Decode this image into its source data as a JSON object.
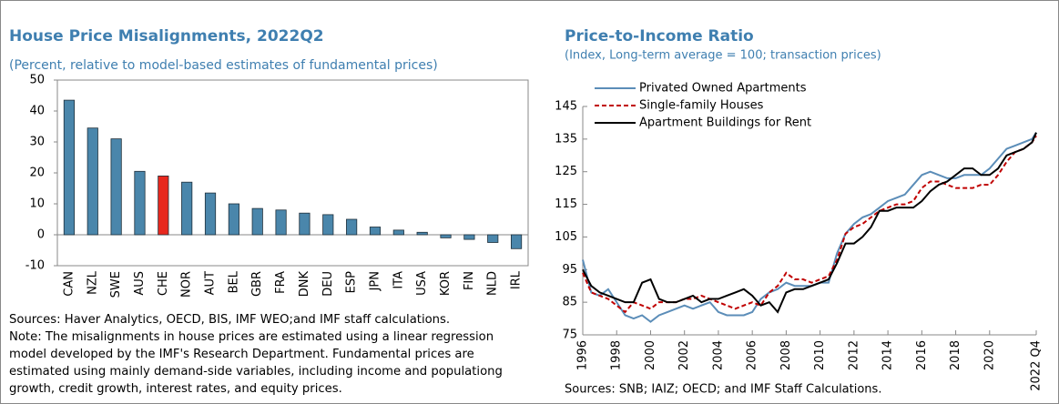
{
  "chart_data": [
    {
      "type": "bar",
      "title": "House Price Misalignments, 2022Q2",
      "subtitle": "(Percent, relative to model-based estimates of fundamental prices)",
      "categories": [
        "CAN",
        "NZL",
        "SWE",
        "AUS",
        "CHE",
        "NOR",
        "AUT",
        "BEL",
        "GBR",
        "FRA",
        "DNK",
        "DEU",
        "ESP",
        "JPN",
        "ITA",
        "USA",
        "KOR",
        "FIN",
        "NLD",
        "IRL"
      ],
      "values": [
        43.5,
        34.5,
        31,
        20.5,
        19,
        17,
        13.5,
        10,
        8.5,
        8,
        7,
        6.5,
        5,
        2.5,
        1.5,
        0.8,
        -1,
        -1.5,
        -2.5,
        -4.5
      ],
      "colors": [
        "#4a86ab",
        "#4a86ab",
        "#4a86ab",
        "#4a86ab",
        "#e8281e",
        "#4a86ab",
        "#4a86ab",
        "#4a86ab",
        "#4a86ab",
        "#4a86ab",
        "#4a86ab",
        "#4a86ab",
        "#4a86ab",
        "#4a86ab",
        "#4a86ab",
        "#4a86ab",
        "#4a86ab",
        "#4a86ab",
        "#4a86ab",
        "#4a86ab"
      ],
      "ylim": [
        -10,
        50
      ],
      "yticks": [
        -10,
        0,
        10,
        20,
        30,
        40,
        50
      ],
      "sources": "Sources: Haver Analytics, OECD, BIS, IMF WEO;and IMF staff calculations.",
      "note": "Note: The misalignments in house prices are estimated using a linear regression model developed by the IMF's Research Department. Fundamental prices are estimated using mainly demand-side variables, including income and populationg growth, credit growth, interest rates, and equity prices."
    },
    {
      "type": "line",
      "title": "Price-to-Income Ratio",
      "subtitle": "(Index, Long-term average = 100; transaction prices)",
      "x": [
        1996,
        1996.5,
        1997,
        1997.5,
        1998,
        1998.5,
        1999,
        1999.5,
        2000,
        2000.5,
        2001,
        2001.5,
        2002,
        2002.5,
        2003,
        2003.5,
        2004,
        2004.5,
        2005,
        2005.5,
        2006,
        2006.5,
        2007,
        2007.5,
        2008,
        2008.5,
        2009,
        2009.5,
        2010,
        2010.5,
        2011,
        2011.5,
        2012,
        2012.5,
        2013,
        2013.5,
        2014,
        2014.5,
        2015,
        2015.5,
        2016,
        2016.5,
        2017,
        2017.5,
        2018,
        2018.5,
        2019,
        2019.5,
        2020,
        2020.5,
        2021,
        2021.5,
        2022,
        2022.5,
        2022.75
      ],
      "series": [
        {
          "name": "Privated Owned Apartments",
          "color": "#5b8db8",
          "dash": false,
          "values": [
            98,
            88,
            87,
            89,
            85,
            81,
            80,
            81,
            79,
            81,
            82,
            83,
            84,
            83,
            84,
            85,
            82,
            81,
            81,
            81,
            82,
            86,
            88,
            89,
            91,
            90,
            90,
            90,
            91,
            91,
            100,
            106,
            109,
            111,
            112,
            114,
            116,
            117,
            118,
            121,
            124,
            125,
            124,
            123,
            123,
            124,
            124,
            124,
            126,
            129,
            132,
            133,
            134,
            135,
            137
          ]
        },
        {
          "name": "Single-family Houses",
          "color": "#c00000",
          "dash": true,
          "values": [
            94,
            88,
            87,
            86,
            84,
            82,
            85,
            84,
            83,
            85,
            85,
            85,
            86,
            86,
            87,
            86,
            85,
            84,
            83,
            84,
            85,
            84,
            88,
            90,
            94,
            92,
            92,
            91,
            92,
            93,
            98,
            106,
            108,
            109,
            111,
            113,
            114,
            115,
            115,
            116,
            120,
            122,
            122,
            121,
            120,
            120,
            120,
            121,
            121,
            124,
            128,
            131,
            132,
            134,
            136
          ]
        },
        {
          "name": "Apartment Buildings for Rent",
          "color": "#000000",
          "dash": false,
          "values": [
            95,
            90,
            88,
            87,
            86,
            85,
            85,
            91,
            92,
            86,
            85,
            85,
            86,
            87,
            85,
            86,
            86,
            87,
            88,
            89,
            87,
            84,
            85,
            82,
            88,
            89,
            89,
            90,
            91,
            92,
            97,
            103,
            103,
            105,
            108,
            113,
            113,
            114,
            114,
            114,
            116,
            119,
            121,
            122,
            124,
            126,
            126,
            124,
            124,
            126,
            130,
            131,
            132,
            134,
            137
          ]
        }
      ],
      "xlim": [
        1996,
        2022.75
      ],
      "xticks": [
        1996,
        1998,
        2000,
        2002,
        2004,
        2006,
        2008,
        2010,
        2012,
        2014,
        2016,
        2018,
        2020,
        {
          "value": 2022.75,
          "label": "2022 Q4"
        }
      ],
      "ylim": [
        75,
        145
      ],
      "yticks": [
        75,
        85,
        95,
        105,
        115,
        125,
        135,
        145
      ],
      "legend": "upper left",
      "sources": "Sources: SNB; IAIZ; OECD; and IMF Staff Calculations."
    }
  ]
}
